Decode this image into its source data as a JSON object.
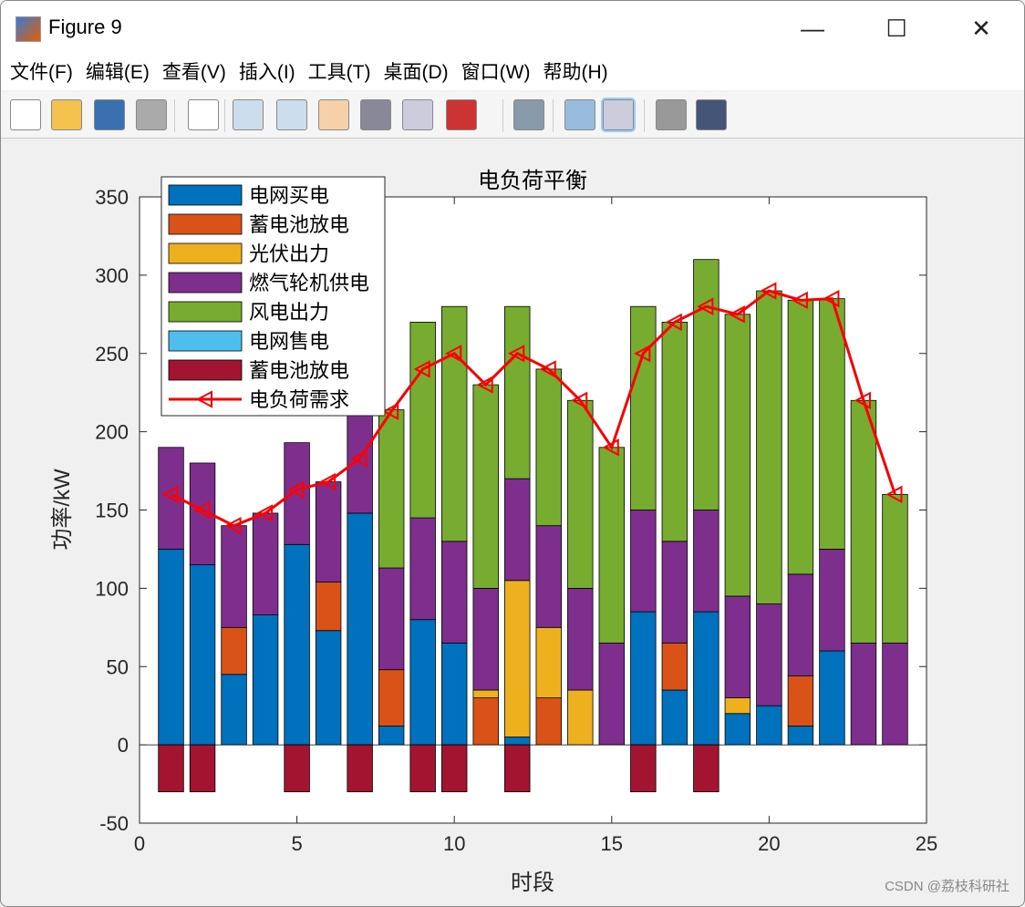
{
  "window": {
    "title": "Figure 9",
    "minimize": "—",
    "maximize": "☐",
    "close": "✕"
  },
  "menu": [
    "文件(F)",
    "编辑(E)",
    "查看(V)",
    "插入(I)",
    "工具(T)",
    "桌面(D)",
    "窗口(W)",
    "帮助(H)"
  ],
  "toolbar": [
    "new-file",
    "open",
    "save",
    "print",
    "pointer",
    "zoom-in",
    "zoom-out",
    "pan",
    "rotate",
    "data-cursor",
    "brush",
    "link",
    "colorbar",
    "legend",
    "hide-tools",
    "dock"
  ],
  "watermark": "CSDN @荔枝科研社",
  "chart_data": {
    "type": "bar",
    "stacked": true,
    "title": "电负荷平衡",
    "xlabel": "时段",
    "ylabel": "功率/kW",
    "xlim": [
      0,
      25
    ],
    "ylim": [
      -50,
      350
    ],
    "xticks": [
      0,
      5,
      10,
      15,
      20,
      25
    ],
    "yticks": [
      -50,
      0,
      50,
      100,
      150,
      200,
      250,
      300,
      350
    ],
    "legend_position": "top-left",
    "categories": [
      1,
      2,
      3,
      4,
      5,
      6,
      7,
      8,
      9,
      10,
      11,
      12,
      13,
      14,
      15,
      16,
      17,
      18,
      19,
      20,
      21,
      22,
      23,
      24
    ],
    "series": [
      {
        "name": "电网买电",
        "color": "#0072BD",
        "values": [
          125,
          115,
          45,
          83,
          128,
          73,
          148,
          12,
          80,
          65,
          0,
          5,
          0,
          0,
          0,
          85,
          35,
          85,
          20,
          25,
          12,
          60,
          0,
          0
        ]
      },
      {
        "name": "蓄电池放电",
        "color": "#D95319",
        "values": [
          0,
          0,
          30,
          0,
          0,
          31,
          0,
          36,
          0,
          0,
          30,
          0,
          30,
          0,
          0,
          0,
          30,
          0,
          0,
          0,
          32,
          0,
          0,
          0
        ]
      },
      {
        "name": "光伏出力",
        "color": "#EDB120",
        "values": [
          0,
          0,
          0,
          0,
          0,
          0,
          0,
          0,
          0,
          0,
          5,
          100,
          45,
          35,
          0,
          0,
          0,
          0,
          10,
          0,
          0,
          0,
          0,
          0
        ]
      },
      {
        "name": "燃气轮机供电",
        "color": "#7E2F8E",
        "values": [
          65,
          65,
          65,
          65,
          65,
          64,
          65,
          65,
          65,
          65,
          65,
          65,
          65,
          65,
          65,
          65,
          65,
          65,
          65,
          65,
          65,
          65,
          65,
          65
        ]
      },
      {
        "name": "风电出力",
        "color": "#77AC30",
        "values": [
          0,
          0,
          0,
          0,
          0,
          0,
          0,
          101,
          125,
          150,
          130,
          110,
          100,
          120,
          125,
          130,
          140,
          160,
          180,
          200,
          175,
          160,
          155,
          95
        ]
      },
      {
        "name": "电网售电",
        "color": "#4DBEEE",
        "values": [
          0,
          0,
          0,
          0,
          0,
          0,
          0,
          0,
          0,
          0,
          0,
          0,
          0,
          0,
          0,
          0,
          0,
          0,
          0,
          0,
          0,
          0,
          0,
          0
        ]
      },
      {
        "name": "蓄电池放电",
        "color": "#A2142F",
        "values": [
          -30,
          -30,
          0,
          0,
          -30,
          0,
          -30,
          0,
          -30,
          -30,
          0,
          -30,
          0,
          0,
          0,
          -30,
          0,
          -30,
          0,
          0,
          0,
          0,
          0,
          0
        ]
      }
    ],
    "line": {
      "name": "电负荷需求",
      "color": "#FF0000",
      "marker": "left-triangle",
      "values": [
        160,
        150,
        140,
        148,
        163,
        168,
        183,
        213,
        240,
        250,
        230,
        250,
        240,
        220,
        190,
        250,
        270,
        280,
        275,
        290,
        284,
        285,
        220,
        160
      ]
    }
  }
}
